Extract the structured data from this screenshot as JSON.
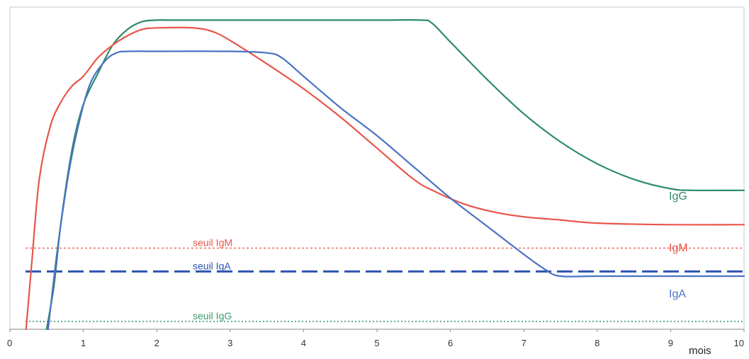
{
  "chart_data": {
    "type": "line",
    "xlabel": "mois",
    "xlim": [
      0,
      10
    ],
    "ylim": [
      0,
      100
    ],
    "x_ticks": [
      "0",
      "1",
      "2",
      "3",
      "4",
      "5",
      "6",
      "7",
      "8",
      "9",
      "10"
    ],
    "y_ticks_shown": false,
    "grid": false,
    "series": [
      {
        "name": "IgG",
        "color": "#2e8b6a",
        "points": [
          [
            0.5,
            0
          ],
          [
            0.6,
            14
          ],
          [
            0.7,
            35
          ],
          [
            0.85,
            58
          ],
          [
            1.0,
            72
          ],
          [
            1.2,
            82
          ],
          [
            1.4,
            91
          ],
          [
            1.6,
            96
          ],
          [
            1.8,
            98.5
          ],
          [
            2.0,
            99
          ],
          [
            2.2,
            99
          ],
          [
            3,
            99
          ],
          [
            4,
            99
          ],
          [
            5,
            99
          ],
          [
            5.6,
            99
          ],
          [
            5.75,
            98
          ],
          [
            6,
            92
          ],
          [
            6.5,
            80
          ],
          [
            7,
            69
          ],
          [
            7.5,
            60
          ],
          [
            8,
            53
          ],
          [
            8.5,
            48
          ],
          [
            9,
            45
          ],
          [
            9.3,
            44.5
          ],
          [
            10,
            44.5
          ]
        ]
      },
      {
        "name": "IgM",
        "color": "#e8554a",
        "points": [
          [
            0.22,
            0
          ],
          [
            0.3,
            22
          ],
          [
            0.4,
            48
          ],
          [
            0.55,
            65
          ],
          [
            0.7,
            73
          ],
          [
            0.85,
            78
          ],
          [
            1.0,
            81
          ],
          [
            1.2,
            87
          ],
          [
            1.4,
            91
          ],
          [
            1.6,
            94
          ],
          [
            1.8,
            96
          ],
          [
            2.0,
            96.5
          ],
          [
            2.5,
            96.5
          ],
          [
            2.8,
            95
          ],
          [
            3.1,
            91
          ],
          [
            3.5,
            85
          ],
          [
            4,
            77
          ],
          [
            4.5,
            68
          ],
          [
            5,
            58
          ],
          [
            5.5,
            48
          ],
          [
            5.8,
            44
          ],
          [
            6.2,
            40
          ],
          [
            6.6,
            37.5
          ],
          [
            7,
            36
          ],
          [
            7.5,
            35
          ],
          [
            8,
            34
          ],
          [
            9,
            33.5
          ],
          [
            10,
            33.5
          ]
        ]
      },
      {
        "name": "IgA",
        "color": "#4a72c4",
        "points": [
          [
            0.52,
            0
          ],
          [
            0.65,
            26
          ],
          [
            0.8,
            50
          ],
          [
            0.95,
            67
          ],
          [
            1.1,
            79
          ],
          [
            1.3,
            86
          ],
          [
            1.45,
            88.5
          ],
          [
            1.6,
            89
          ],
          [
            2,
            89
          ],
          [
            3,
            89
          ],
          [
            3.5,
            88.5
          ],
          [
            3.7,
            87
          ],
          [
            4,
            81
          ],
          [
            4.5,
            71
          ],
          [
            5,
            62
          ],
          [
            5.5,
            52
          ],
          [
            6,
            42
          ],
          [
            6.5,
            33
          ],
          [
            7,
            24
          ],
          [
            7.3,
            19
          ],
          [
            7.5,
            17
          ],
          [
            8,
            17
          ],
          [
            9,
            17
          ],
          [
            10,
            17
          ]
        ]
      }
    ],
    "thresholds": [
      {
        "label": "seuil IgM",
        "y": 26,
        "color": "#e8554a",
        "style": "dotted-fine"
      },
      {
        "label": "seuil IgA",
        "y": 18.5,
        "color": "#2f55b0",
        "style": "dashed-bold"
      },
      {
        "label": "seuil IgG",
        "y": 2.5,
        "color": "#3a9a6e",
        "style": "dotted"
      }
    ]
  }
}
